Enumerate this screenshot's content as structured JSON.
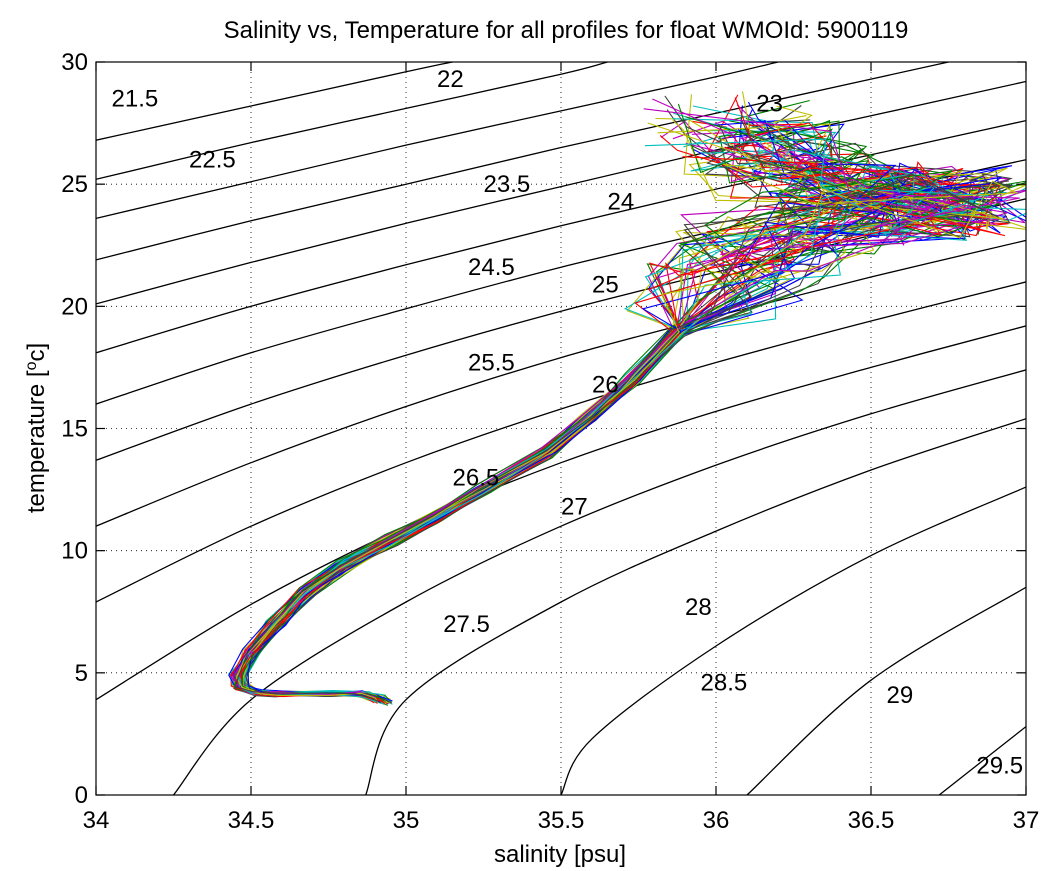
{
  "chart_data": {
    "type": "line",
    "title": "Salinity vs, Temperature for all profiles for float WMOId: 5900119",
    "xlabel": "salinity [psu]",
    "ylabel_prefix": "temperature [",
    "ylabel_sup": "o",
    "ylabel_suffix": "c]",
    "xlim": [
      34,
      37
    ],
    "ylim": [
      0,
      30
    ],
    "xticks": [
      34,
      34.5,
      35,
      35.5,
      36,
      36.5,
      37
    ],
    "xtick_labels": [
      "34",
      "34.5",
      "35",
      "35.5",
      "36",
      "36.5",
      "37"
    ],
    "yticks": [
      0,
      5,
      10,
      15,
      20,
      25,
      30
    ],
    "ytick_labels": [
      "0",
      "5",
      "10",
      "15",
      "20",
      "25",
      "30"
    ],
    "grid": "dotted",
    "legend": "none",
    "density_contours": [
      {
        "level": 21.5,
        "label": "21.5",
        "points": [
          [
            34.0,
            26.8
          ],
          [
            34.5,
            28.2
          ],
          [
            35.0,
            29.6
          ],
          [
            35.15,
            30.0
          ]
        ],
        "label_at": [
          34.05,
          28.5
        ]
      },
      {
        "level": 22,
        "label": "22",
        "points": [
          [
            34.0,
            25.2
          ],
          [
            34.5,
            26.7
          ],
          [
            35.0,
            28.1
          ],
          [
            35.5,
            29.5
          ],
          [
            35.65,
            30.0
          ]
        ],
        "label_at": [
          35.1,
          29.3
        ]
      },
      {
        "level": 22.5,
        "label": "22.5",
        "points": [
          [
            34.0,
            23.6
          ],
          [
            34.5,
            25.1
          ],
          [
            35.0,
            26.6
          ],
          [
            35.5,
            28.0
          ],
          [
            36.0,
            29.4
          ],
          [
            36.2,
            30.0
          ]
        ],
        "label_at": [
          34.3,
          26.0
        ]
      },
      {
        "level": 23,
        "label": "23",
        "points": [
          [
            34.0,
            21.9
          ],
          [
            34.5,
            23.5
          ],
          [
            35.0,
            25.0
          ],
          [
            35.5,
            26.5
          ],
          [
            36.0,
            27.9
          ],
          [
            36.5,
            29.3
          ],
          [
            36.75,
            30.0
          ]
        ],
        "label_at": [
          36.13,
          28.3
        ]
      },
      {
        "level": 23.5,
        "label": "23.5",
        "points": [
          [
            34.0,
            20.1
          ],
          [
            34.5,
            21.8
          ],
          [
            35.0,
            23.4
          ],
          [
            35.5,
            24.9
          ],
          [
            36.0,
            26.4
          ],
          [
            36.5,
            27.8
          ],
          [
            37.0,
            29.2
          ]
        ],
        "label_at": [
          35.25,
          25.0
        ]
      },
      {
        "level": 24,
        "label": "24",
        "points": [
          [
            34.0,
            18.1
          ],
          [
            34.5,
            20.0
          ],
          [
            35.0,
            21.7
          ],
          [
            35.5,
            23.3
          ],
          [
            36.0,
            24.8
          ],
          [
            36.5,
            26.2
          ],
          [
            37.0,
            27.6
          ]
        ],
        "label_at": [
          35.65,
          24.3
        ]
      },
      {
        "level": 24.5,
        "label": "24.5",
        "points": [
          [
            34.0,
            16.0
          ],
          [
            34.5,
            18.1
          ],
          [
            35.0,
            19.9
          ],
          [
            35.5,
            21.6
          ],
          [
            36.0,
            23.1
          ],
          [
            36.5,
            24.6
          ],
          [
            37.0,
            26.0
          ]
        ],
        "label_at": [
          35.2,
          21.6
        ]
      },
      {
        "level": 25,
        "label": "25",
        "points": [
          [
            34.0,
            13.7
          ],
          [
            34.5,
            16.0
          ],
          [
            35.0,
            18.0
          ],
          [
            35.5,
            19.8
          ],
          [
            36.0,
            21.4
          ],
          [
            36.5,
            22.9
          ],
          [
            37.0,
            24.4
          ]
        ],
        "label_at": [
          35.6,
          20.9
        ]
      },
      {
        "level": 25.5,
        "label": "25.5",
        "points": [
          [
            34.0,
            11.0
          ],
          [
            34.5,
            13.6
          ],
          [
            35.0,
            15.9
          ],
          [
            35.5,
            17.9
          ],
          [
            36.0,
            19.6
          ],
          [
            36.5,
            21.2
          ],
          [
            37.0,
            22.7
          ]
        ],
        "label_at": [
          35.2,
          17.7
        ]
      },
      {
        "level": 26,
        "label": "26",
        "points": [
          [
            34.0,
            7.9
          ],
          [
            34.5,
            11.0
          ],
          [
            35.0,
            13.6
          ],
          [
            35.5,
            15.8
          ],
          [
            36.0,
            17.7
          ],
          [
            36.5,
            19.4
          ],
          [
            37.0,
            21.0
          ]
        ],
        "label_at": [
          35.6,
          16.8
        ]
      },
      {
        "level": 26.5,
        "label": "26.5",
        "points": [
          [
            34.0,
            3.9
          ],
          [
            34.5,
            7.8
          ],
          [
            35.0,
            11.0
          ],
          [
            35.5,
            13.6
          ],
          [
            36.0,
            15.7
          ],
          [
            36.5,
            17.5
          ],
          [
            37.0,
            19.2
          ]
        ],
        "label_at": [
          35.15,
          13.0
        ]
      },
      {
        "level": 27,
        "label": "27",
        "points": [
          [
            34.25,
            0.0
          ],
          [
            34.5,
            3.9
          ],
          [
            35.0,
            7.9
          ],
          [
            35.5,
            11.0
          ],
          [
            36.0,
            13.5
          ],
          [
            36.5,
            15.6
          ],
          [
            37.0,
            17.4
          ]
        ],
        "label_at": [
          35.5,
          11.8
        ]
      },
      {
        "level": 27.5,
        "label": "27.5",
        "points": [
          [
            34.87,
            0.0
          ],
          [
            35.0,
            3.9
          ],
          [
            35.5,
            7.9
          ],
          [
            36.0,
            10.8
          ],
          [
            36.5,
            13.3
          ],
          [
            37.0,
            15.4
          ]
        ],
        "label_at": [
          35.12,
          7.0
        ]
      },
      {
        "level": 28,
        "label": "28",
        "points": [
          [
            35.5,
            0.0
          ],
          [
            35.6,
            2.3
          ],
          [
            36.0,
            6.1
          ],
          [
            36.5,
            9.8
          ],
          [
            37.0,
            12.6
          ]
        ],
        "label_at": [
          35.9,
          7.7
        ]
      },
      {
        "level": 28.5,
        "label": "28.5",
        "points": [
          [
            36.1,
            0.0
          ],
          [
            36.5,
            4.7
          ],
          [
            37.0,
            8.5
          ]
        ],
        "label_at": [
          35.95,
          4.6
        ]
      },
      {
        "level": 29,
        "label": "29",
        "points": [
          [
            36.72,
            0.0
          ],
          [
            37.0,
            2.8
          ]
        ],
        "label_at": [
          36.55,
          4.1
        ]
      },
      {
        "level": 29.5,
        "label": "29.5",
        "points": [],
        "label_at": [
          36.84,
          1.2
        ]
      }
    ],
    "profile_base": [
      [
        34.93,
        3.8
      ],
      [
        34.9,
        4.0
      ],
      [
        34.85,
        4.15
      ],
      [
        34.75,
        4.15
      ],
      [
        34.6,
        4.15
      ],
      [
        34.52,
        4.2
      ],
      [
        34.47,
        4.4
      ],
      [
        34.46,
        4.9
      ],
      [
        34.5,
        5.8
      ],
      [
        34.58,
        7.0
      ],
      [
        34.68,
        8.3
      ],
      [
        34.8,
        9.4
      ],
      [
        34.95,
        10.4
      ],
      [
        35.1,
        11.4
      ],
      [
        35.25,
        12.5
      ],
      [
        35.45,
        14.0
      ],
      [
        35.6,
        15.5
      ],
      [
        35.73,
        17.0
      ],
      [
        35.88,
        19.0
      ],
      [
        36.0,
        20.8
      ],
      [
        36.15,
        22.3
      ],
      [
        36.35,
        23.3
      ],
      [
        36.55,
        23.8
      ],
      [
        36.7,
        24.1
      ],
      [
        36.78,
        24.3
      ],
      [
        36.7,
        24.6
      ],
      [
        36.45,
        25.0
      ],
      [
        36.25,
        25.5
      ],
      [
        36.15,
        26.5
      ],
      [
        36.05,
        27.5
      ]
    ],
    "profile_colors": [
      "#0000ff",
      "#008000",
      "#ff0000",
      "#00bfbf",
      "#bf00bf",
      "#bfbf00",
      "#404040"
    ],
    "profile_count": 70
  }
}
